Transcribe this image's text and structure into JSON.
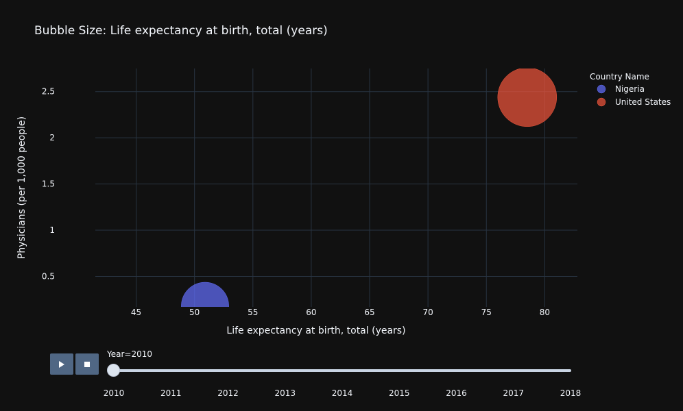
{
  "chart_data": {
    "type": "scatter",
    "title": "Bubble Size: Life expectancy at birth, total (years)",
    "xlabel": "Life expectancy at birth, total (years)",
    "ylabel": "Physicians (per 1,000 people)",
    "xlim": [
      41.5,
      82.8
    ],
    "ylim": [
      0.17,
      2.75
    ],
    "xticks": [
      45,
      50,
      55,
      60,
      65,
      70,
      75,
      80
    ],
    "yticks": [
      0.5,
      1,
      1.5,
      2,
      2.5
    ],
    "ytick_labels": [
      "0.5",
      "1",
      "1.5",
      "2",
      "2.5"
    ],
    "grid": true,
    "legend": {
      "title": "Country Name",
      "position": "top-right"
    },
    "size_variable": "Life expectancy at birth, total (years)",
    "series": [
      {
        "name": "Nigeria",
        "color": "#636efa",
        "x": [
          50.9
        ],
        "y": [
          0.18
        ],
        "size": [
          50.9
        ]
      },
      {
        "name": "United States",
        "color": "#ef553b",
        "x": [
          78.5
        ],
        "y": [
          2.44
        ],
        "size": [
          78.5
        ]
      }
    ]
  },
  "animation": {
    "current_label": "Year=2010",
    "current_value": 2010,
    "steps": [
      "2010",
      "2011",
      "2012",
      "2013",
      "2014",
      "2015",
      "2016",
      "2017",
      "2018"
    ],
    "play_icon": "play-icon",
    "stop_icon": "stop-icon"
  }
}
